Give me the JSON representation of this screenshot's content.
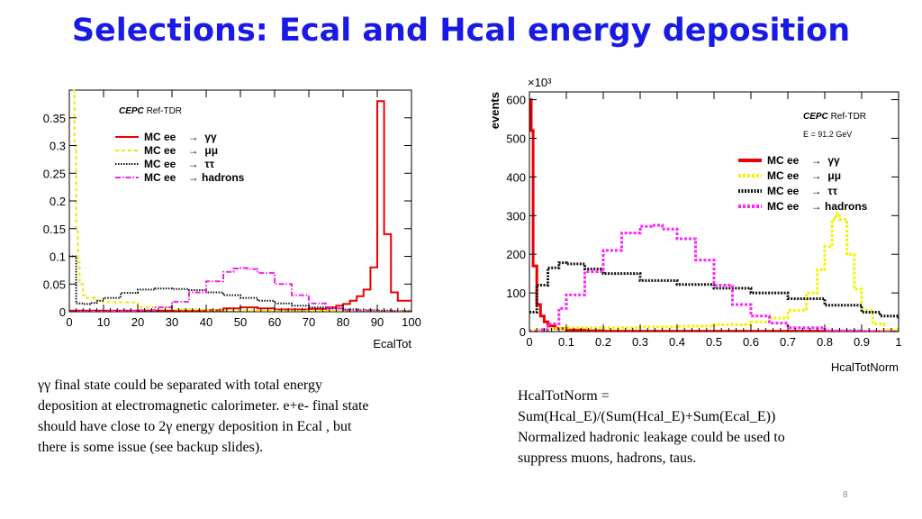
{
  "slide": {
    "title": "Selections: Ecal and Hcal energy deposition",
    "left_caption": [
      "γγ final state could be separated with total energy",
      "deposition at electromagnetic calorimeter. e+e- final state",
      "should have close to 2γ energy deposition in  Ecal , but",
      "there is some issue (see backup slides)."
    ],
    "right_caption": [
      "HcalTotNorm =",
      "Sum(Hcal_E)/(Sum(Hcal_E)+Sum(Ecal_E))",
      "Normalized hadronic leakage could be used to",
      "suppress muons, hadrons, taus."
    ],
    "page_number": "8"
  },
  "chart_data": [
    {
      "type": "line",
      "title": "",
      "xlabel": "EcalTot",
      "ylabel": "",
      "xlim": [
        0,
        100
      ],
      "ylim": [
        0,
        0.4
      ],
      "xticks": [
        "0",
        "10",
        "20",
        "30",
        "40",
        "50",
        "60",
        "70",
        "80",
        "90",
        "100"
      ],
      "yticks": [
        "0",
        "0.05",
        "0.1",
        "0.15",
        "0.2",
        "0.25",
        "0.3",
        "0.35"
      ],
      "stamp": {
        "bold": "CEPC",
        "text": "Ref-TDR"
      },
      "legend": {
        "position": "top-left",
        "entries": [
          "MC ee    →  γγ",
          "MC ee    →  μμ",
          "MC ee    →  ττ",
          "MC ee    → hadrons"
        ]
      },
      "series": [
        {
          "name": "MC ee → γγ",
          "color": "#ee0000",
          "style": "solid",
          "x": [
            0,
            10,
            20,
            30,
            40,
            45,
            50,
            55,
            60,
            65,
            70,
            75,
            78,
            80,
            82,
            84,
            86,
            88,
            90,
            91,
            92,
            93,
            94,
            95,
            96,
            98,
            100
          ],
          "y": [
            0.002,
            0.002,
            0.002,
            0.002,
            0.003,
            0.006,
            0.008,
            0.006,
            0.004,
            0.004,
            0.005,
            0.008,
            0.011,
            0.014,
            0.02,
            0.028,
            0.04,
            0.08,
            0.38,
            0.38,
            0.14,
            0.14,
            0.035,
            0.035,
            0.02,
            0.02,
            0.02
          ]
        },
        {
          "name": "MC ee → μμ",
          "color": "#e8e800",
          "style": "dashed",
          "x": [
            1,
            1.5,
            2,
            2.5,
            3,
            4,
            5,
            8,
            10,
            20,
            30,
            40,
            50,
            60,
            70,
            80,
            90,
            100
          ],
          "y": [
            0.4,
            0.3,
            0.15,
            0.09,
            0.05,
            0.03,
            0.025,
            0.02,
            0.017,
            0.008,
            0.004,
            0.003,
            0.002,
            0.002,
            0.002,
            0.002,
            0.002,
            0.002
          ]
        },
        {
          "name": "MC ee → ττ",
          "color": "#111111",
          "style": "dotted",
          "x": [
            0,
            2,
            4,
            6,
            8,
            10,
            15,
            20,
            25,
            30,
            35,
            40,
            45,
            50,
            55,
            60,
            65,
            70,
            75,
            80,
            85,
            90,
            95,
            100
          ],
          "y": [
            0.1,
            0.015,
            0.014,
            0.016,
            0.02,
            0.025,
            0.034,
            0.04,
            0.042,
            0.041,
            0.039,
            0.035,
            0.03,
            0.025,
            0.02,
            0.015,
            0.011,
            0.008,
            0.006,
            0.004,
            0.003,
            0.002,
            0.001,
            0.001
          ]
        },
        {
          "name": "MC ee → hadrons",
          "color": "#ee22ee",
          "style": "dashdot",
          "x": [
            0,
            10,
            20,
            25,
            30,
            35,
            40,
            45,
            48,
            50,
            52,
            55,
            60,
            65,
            70,
            75,
            80,
            90,
            100
          ],
          "y": [
            0,
            0.001,
            0.003,
            0.008,
            0.018,
            0.035,
            0.055,
            0.072,
            0.078,
            0.079,
            0.077,
            0.07,
            0.05,
            0.03,
            0.015,
            0.006,
            0.002,
            0,
            0
          ]
        }
      ]
    },
    {
      "type": "line",
      "title": "",
      "xlabel": "HcalTotNorm",
      "ylabel": "events",
      "yexponent": "×10³",
      "xlim": [
        0,
        1
      ],
      "ylim": [
        0,
        620
      ],
      "xticks": [
        "0",
        "0.1",
        "0.2",
        "0.3",
        "0.4",
        "0.5",
        "0.6",
        "0.7",
        "0.8",
        "0.9",
        "1"
      ],
      "yticks": [
        "0",
        "100",
        "200",
        "300",
        "400",
        "500",
        "600"
      ],
      "stamp": {
        "bold": "CEPC",
        "text": "Ref-TDR"
      },
      "energy": "E = 91.2 GeV",
      "legend": {
        "position": "top-right",
        "entries": [
          "MC ee    →  γγ",
          "MC ee    →  μμ",
          "MC ee    →  ττ",
          "MC ee    → hadrons"
        ]
      },
      "series": [
        {
          "name": "MC ee → γγ",
          "color": "#ee0000",
          "style": "thick",
          "x": [
            0,
            0.005,
            0.01,
            0.02,
            0.03,
            0.04,
            0.05,
            0.07,
            0.1,
            0.15,
            0.2,
            0.4,
            0.6,
            0.8,
            1.0
          ],
          "y": [
            600,
            520,
            170,
            70,
            40,
            25,
            15,
            8,
            4,
            2,
            1,
            1,
            1,
            0,
            0
          ]
        },
        {
          "name": "MC ee → μμ",
          "color": "#f2f200",
          "style": "thick-dashed",
          "x": [
            0,
            0.02,
            0.05,
            0.1,
            0.2,
            0.3,
            0.4,
            0.5,
            0.6,
            0.65,
            0.7,
            0.75,
            0.78,
            0.8,
            0.82,
            0.83,
            0.84,
            0.86,
            0.88,
            0.9,
            0.93,
            0.96,
            1.0
          ],
          "y": [
            3,
            5,
            8,
            10,
            10,
            12,
            14,
            18,
            25,
            35,
            55,
            100,
            160,
            220,
            290,
            305,
            290,
            200,
            110,
            55,
            20,
            5,
            2
          ]
        },
        {
          "name": "MC ee → ττ",
          "color": "#111111",
          "style": "thick-dotted",
          "x": [
            0,
            0.02,
            0.05,
            0.08,
            0.1,
            0.15,
            0.2,
            0.3,
            0.4,
            0.5,
            0.6,
            0.7,
            0.8,
            0.9,
            0.95,
            1.0
          ],
          "y": [
            50,
            120,
            165,
            178,
            175,
            162,
            150,
            132,
            122,
            112,
            100,
            85,
            68,
            50,
            40,
            30
          ]
        },
        {
          "name": "MC ee → hadrons",
          "color": "#ff22ff",
          "style": "thick-dashed",
          "x": [
            0,
            0.03,
            0.05,
            0.08,
            0.1,
            0.15,
            0.2,
            0.25,
            0.3,
            0.33,
            0.36,
            0.4,
            0.45,
            0.5,
            0.55,
            0.6,
            0.65,
            0.7,
            0.8,
            0.9,
            1.0
          ],
          "y": [
            0,
            5,
            20,
            60,
            95,
            155,
            210,
            255,
            272,
            275,
            265,
            240,
            185,
            120,
            70,
            40,
            22,
            10,
            2,
            0,
            0
          ]
        }
      ]
    }
  ]
}
